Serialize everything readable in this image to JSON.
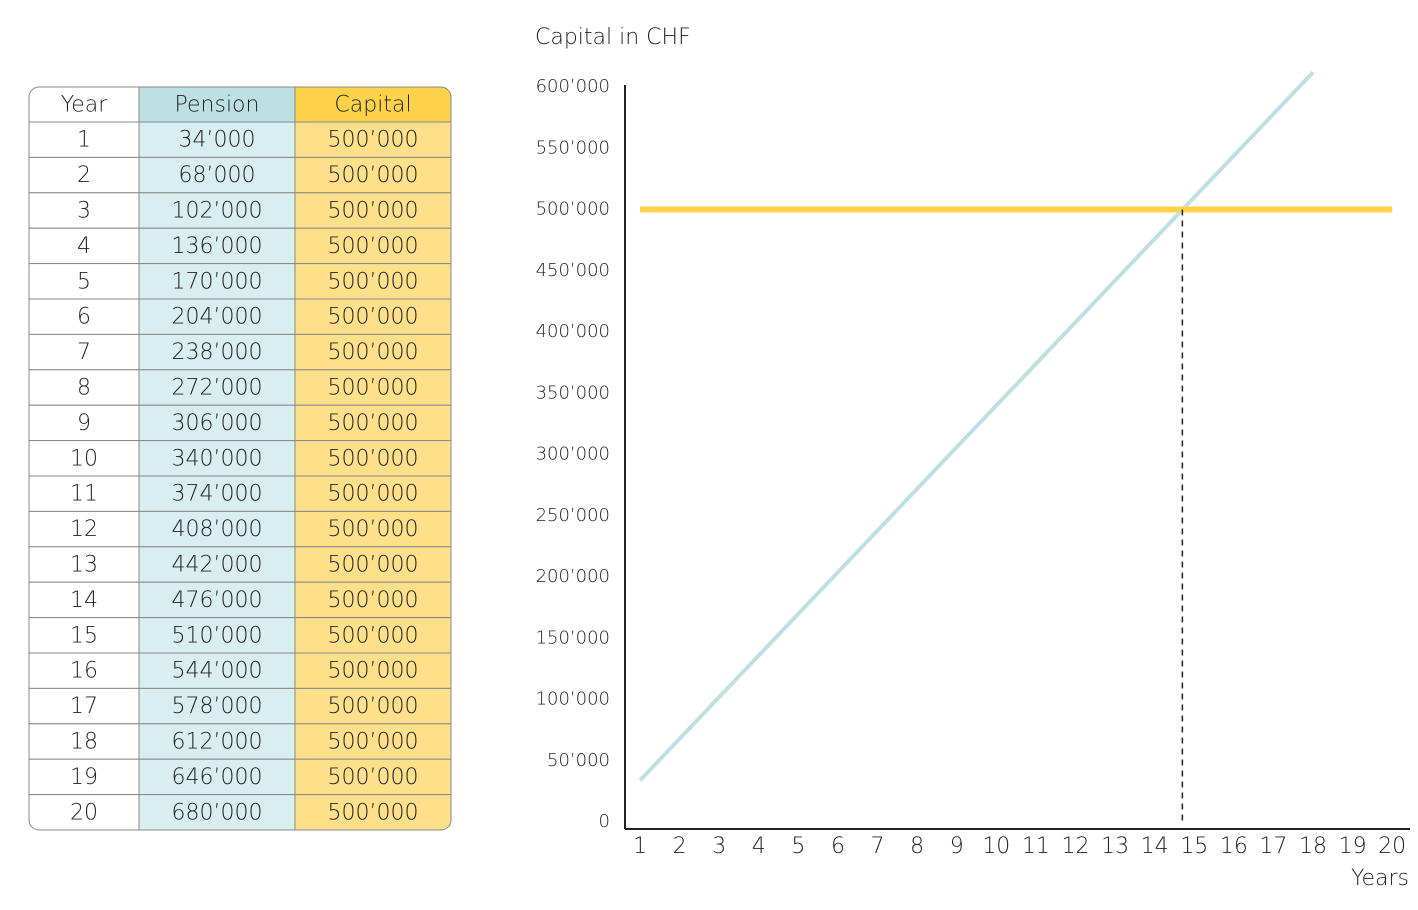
{
  "table": {
    "header": [
      "Year",
      "Pension",
      "Capital"
    ],
    "rows": [
      [
        "1",
        "34’000",
        "500’000"
      ],
      [
        "2",
        "68’000",
        "500’000"
      ],
      [
        "3",
        "102’000",
        "500’000"
      ],
      [
        "4",
        "136’000",
        "500’000"
      ],
      [
        "5",
        "170’000",
        "500’000"
      ],
      [
        "6",
        "204’000",
        "500’000"
      ],
      [
        "7",
        "238’000",
        "500’000"
      ],
      [
        "8",
        "272’000",
        "500’000"
      ],
      [
        "9",
        "306’000",
        "500’000"
      ],
      [
        "10",
        "340’000",
        "500’000"
      ],
      [
        "11",
        "374’000",
        "500’000"
      ],
      [
        "12",
        "408’000",
        "500’000"
      ],
      [
        "13",
        "442’000",
        "500’000"
      ],
      [
        "14",
        "476’000",
        "500’000"
      ],
      [
        "15",
        "510’000",
        "500’000"
      ],
      [
        "16",
        "544’000",
        "500’000"
      ],
      [
        "17",
        "578’000",
        "500’000"
      ],
      [
        "18",
        "612’000",
        "500’000"
      ],
      [
        "19",
        "646’000",
        "500’000"
      ],
      [
        "20",
        "680’000",
        "500’000"
      ]
    ]
  },
  "chart_data": {
    "type": "line",
    "y_label": "Capital in CHF",
    "x_label": "Years",
    "series": [
      {
        "color": "#bfe0e3",
        "x": [
          1,
          2,
          3,
          4,
          5,
          6,
          7,
          8,
          9,
          10,
          11,
          12,
          13,
          14,
          15,
          16,
          17,
          18
        ],
        "values": [
          34000,
          68000,
          102000,
          136000,
          170000,
          204000,
          238000,
          272000,
          306000,
          340000,
          374000,
          408000,
          442000,
          476000,
          510000,
          544000,
          578000,
          612000
        ]
      },
      {
        "color": "#fdd24a",
        "x": [
          1,
          2,
          3,
          4,
          5,
          6,
          7,
          8,
          9,
          10,
          11,
          12,
          13,
          14,
          15,
          16,
          17,
          18,
          19,
          20
        ],
        "values": [
          500000,
          500000,
          500000,
          500000,
          500000,
          500000,
          500000,
          500000,
          500000,
          500000,
          500000,
          500000,
          500000,
          500000,
          500000,
          500000,
          500000,
          500000,
          500000,
          500000
        ]
      }
    ],
    "vline": 14.7,
    "xlim": [
      0.62,
      20.45
    ],
    "xticks": [
      1,
      2,
      3,
      4,
      5,
      6,
      7,
      8,
      9,
      10,
      11,
      12,
      13,
      14,
      15,
      16,
      17,
      18,
      19,
      20
    ],
    "ylim": [
      0,
      600000
    ],
    "yticks": [
      0,
      {
        "value": 50000,
        "label": "50’000"
      },
      {
        "value": 100000,
        "label": "100’000"
      },
      {
        "value": 150000,
        "label": "150’000"
      },
      {
        "value": 200000,
        "label": "200’000"
      },
      {
        "value": 250000,
        "label": "250’000"
      },
      {
        "value": 300000,
        "label": "300’000"
      },
      {
        "value": 350000,
        "label": "350’000"
      },
      {
        "value": 400000,
        "label": "400’000"
      },
      {
        "value": 450000,
        "label": "450’000"
      },
      {
        "value": 500000,
        "label": "500’000"
      },
      {
        "value": 550000,
        "label": "550’000"
      },
      {
        "value": 600000,
        "label": "600’000"
      }
    ]
  }
}
